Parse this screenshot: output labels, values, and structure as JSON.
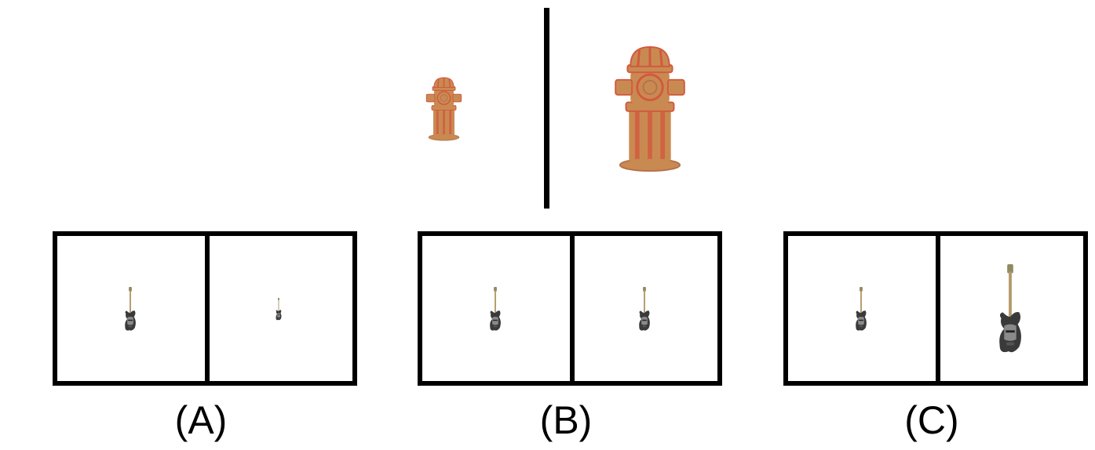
{
  "colors": {
    "hydrant_body": "#c98a52",
    "hydrant_accent": "#d2583e",
    "guitar_body": "#3a3a3a",
    "guitar_pickguard": "#8a8a8a",
    "guitar_neck": "#b49a6a",
    "divider": "#000000"
  },
  "reference": {
    "left_object": "fire-hydrant",
    "right_object": "fire-hydrant"
  },
  "options": [
    {
      "label": "(A)",
      "object": "bass-guitar"
    },
    {
      "label": "(B)",
      "object": "bass-guitar"
    },
    {
      "label": "(C)",
      "object": "bass-guitar"
    }
  ]
}
